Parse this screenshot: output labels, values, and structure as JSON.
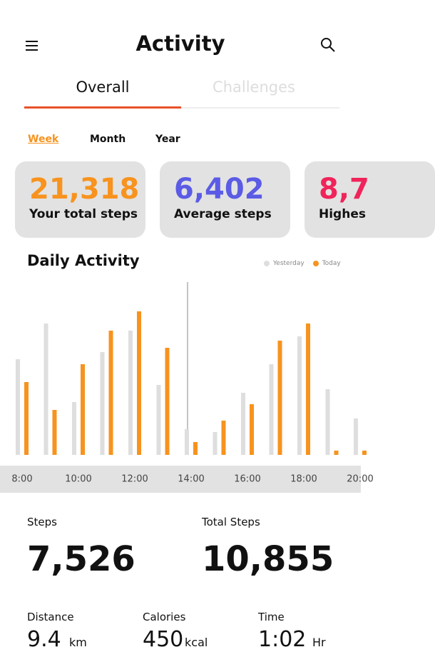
{
  "header": {
    "title": "Activity"
  },
  "tabs": [
    "Overall",
    "Challenges"
  ],
  "periods": [
    "Week",
    "Month",
    "Year"
  ],
  "cards": [
    {
      "value": "21,318",
      "label": "Your total steps",
      "color": "#f7931e"
    },
    {
      "value": "6,402",
      "label": "Average steps",
      "color": "#5b5be6"
    },
    {
      "value": "8,7",
      "label": "Highes",
      "color": "#f0245a"
    }
  ],
  "chart_data": {
    "type": "bar",
    "title": "Daily Activity",
    "categories": [
      "8:00",
      null,
      "10:00",
      null,
      "12:00",
      null,
      "14:00",
      null,
      "16:00",
      null,
      "18:00",
      null,
      "20:00"
    ],
    "series": [
      {
        "name": "Yesterday",
        "color": "#dedede",
        "values": [
          134,
          184,
          74,
          144,
          174,
          98,
          36,
          32,
          87,
          127,
          166,
          92,
          51
        ]
      },
      {
        "name": "Today",
        "color": "#f7931e",
        "values": [
          102,
          63,
          127,
          174,
          201,
          150,
          18,
          48,
          71,
          160,
          184,
          6,
          6
        ]
      }
    ],
    "ylim": [
      0,
      245
    ]
  },
  "stats": [
    {
      "label": "Steps",
      "value": "7,526"
    },
    {
      "label": "Total Steps",
      "value": "10,855"
    }
  ],
  "details": [
    {
      "label": "Distance",
      "value": "9.4",
      "unit": "km"
    },
    {
      "label": "Calories",
      "value": "450",
      "unit": "kcal"
    },
    {
      "label": "Time",
      "value": "1:02",
      "unit": "Hr"
    }
  ]
}
